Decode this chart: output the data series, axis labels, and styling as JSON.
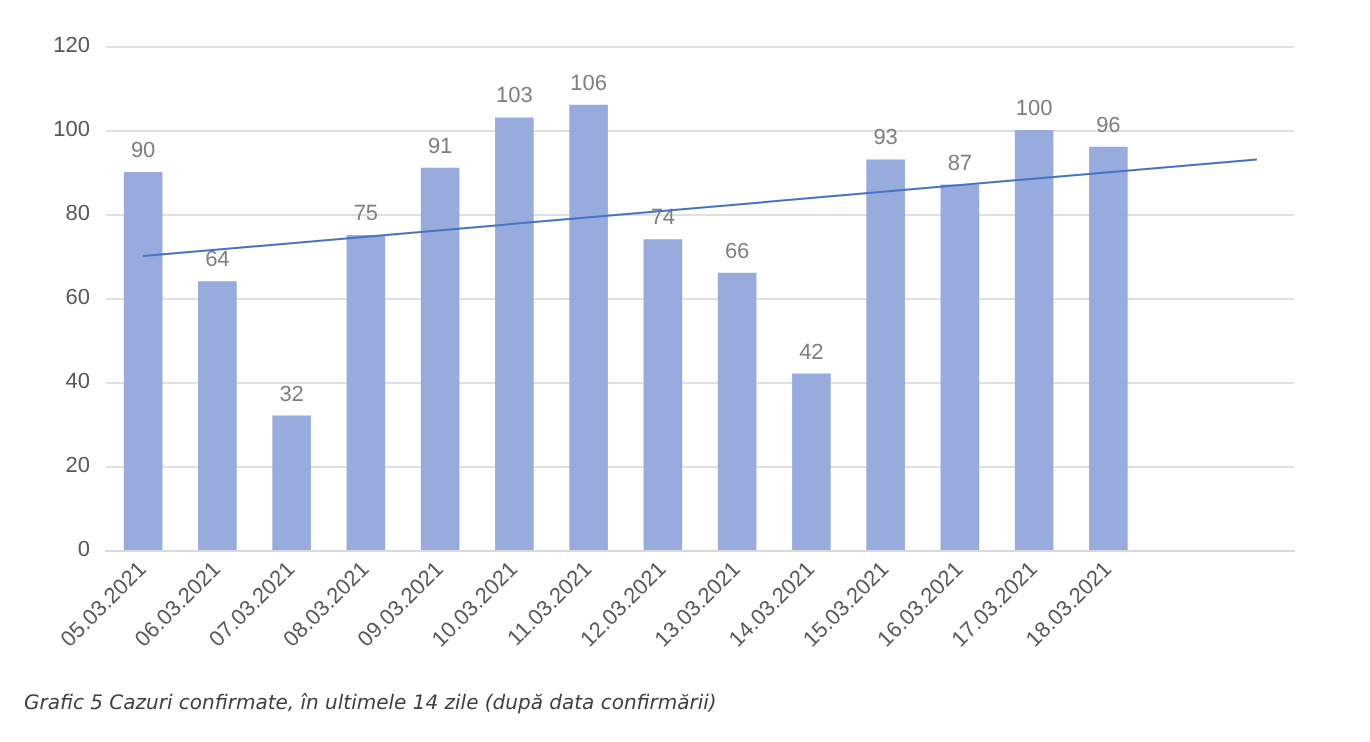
{
  "chart_data": {
    "type": "bar",
    "categories": [
      "05.03.2021",
      "06.03.2021",
      "07.03.2021",
      "08.03.2021",
      "09.03.2021",
      "10.03.2021",
      "11.03.2021",
      "12.03.2021",
      "13.03.2021",
      "14.03.2021",
      "15.03.2021",
      "16.03.2021",
      "17.03.2021",
      "18.03.2021",
      null,
      null
    ],
    "series": [
      {
        "color": "#98abdd",
        "values": [
          90,
          64,
          32,
          75,
          91,
          103,
          106,
          74,
          66,
          42,
          93,
          87,
          100,
          96,
          null,
          null
        ],
        "value_labels": [
          "90",
          "64",
          "32",
          "75",
          "91",
          "103",
          "106",
          "74",
          "66",
          "42",
          "93",
          "87",
          "100",
          "96",
          null,
          null
        ]
      },
      {
        "type": "line",
        "color": "#4472c4",
        "values": [
          70,
          null,
          null,
          null,
          null,
          null,
          null,
          null,
          null,
          null,
          null,
          null,
          null,
          null,
          null,
          93
        ]
      }
    ],
    "ylim": [
      0,
      120
    ],
    "yticks": [
      0,
      20,
      40,
      60,
      80,
      100,
      120
    ],
    "grid": "y",
    "marker": "none",
    "annotations": [
      "Grafic 5 Cazuri confirmate, în ultimele 14 zile (după data confirmării)"
    ]
  }
}
